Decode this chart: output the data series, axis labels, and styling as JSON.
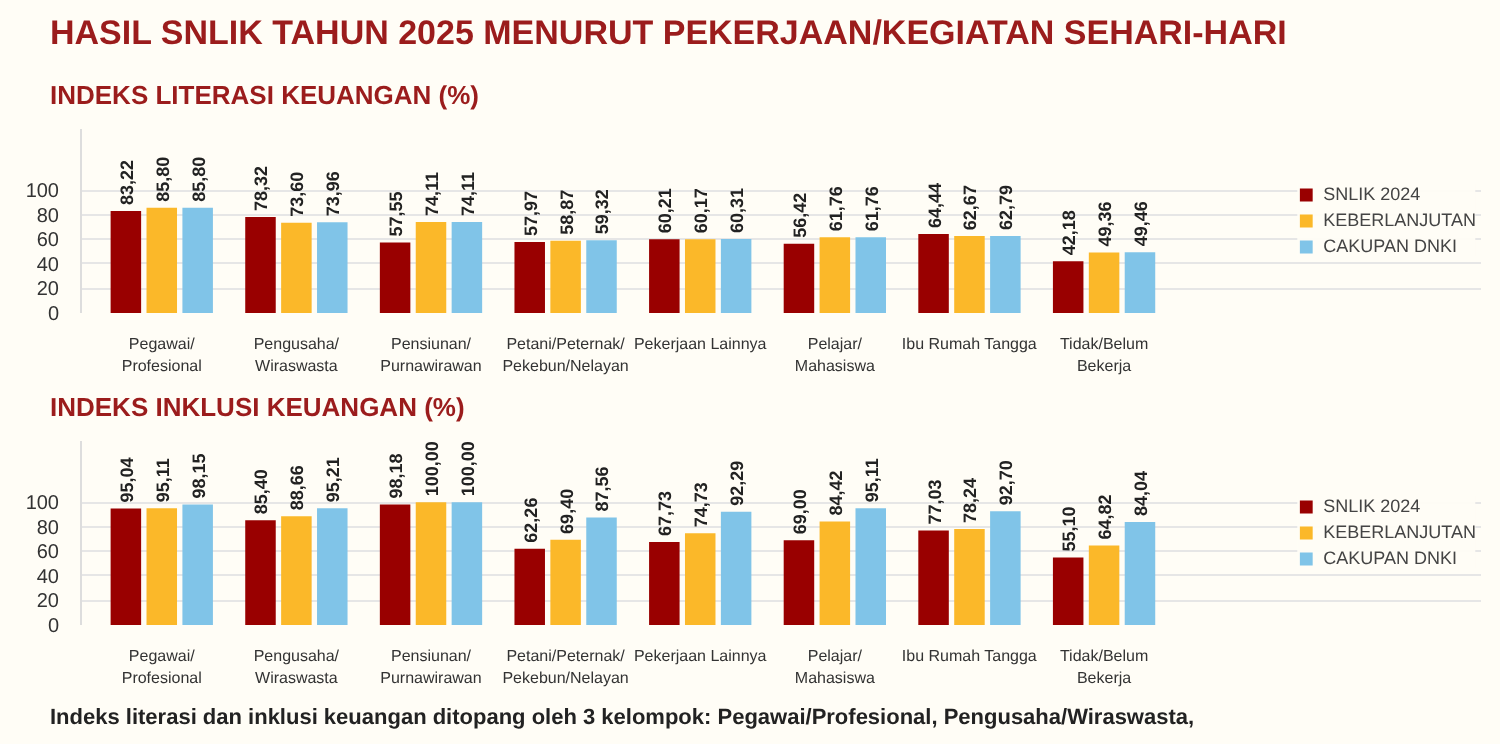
{
  "chart_data": [
    {
      "type": "bar",
      "title": "HASIL SNLIK TAHUN 2025 MENURUT PEKERJAAN/KEGIATAN SEHARI-HARI",
      "subtitle": "INDEKS LITERASI KEUANGAN (%)",
      "categories": [
        "Pegawai/\nProfesional",
        "Pengusaha/\nWiraswasta",
        "Pensiunan/\nPurnawirawan",
        "Petani/Peternak/\nPekebun/Nelayan",
        "Pekerjaan Lainnya",
        "Pelajar/\nMahasiswa",
        "Ibu Rumah Tangga",
        "Tidak/Belum\nBekerja"
      ],
      "series": [
        {
          "name": "SNLIK 2024",
          "color": "#990000",
          "values": [
            83.22,
            78.32,
            57.55,
            57.97,
            60.21,
            56.42,
            64.44,
            42.18
          ],
          "value_labels": [
            "83,22",
            "78,32",
            "57,55",
            "57,97",
            "60,21",
            "56,42",
            "64,44",
            "42,18"
          ]
        },
        {
          "name": "KEBERLANJUTAN",
          "color": "#fbb829",
          "values": [
            85.8,
            73.6,
            74.11,
            58.87,
            60.17,
            61.76,
            62.67,
            49.36
          ],
          "value_labels": [
            "85,80",
            "73,60",
            "74,11",
            "58,87",
            "60,17",
            "61,76",
            "62,67",
            "49,36"
          ]
        },
        {
          "name": "CAKUPAN DNKI",
          "color": "#80c4e8",
          "values": [
            85.8,
            73.96,
            74.11,
            59.32,
            60.31,
            61.76,
            62.79,
            49.46
          ],
          "value_labels": [
            "85,80",
            "73,96",
            "74,11",
            "59,32",
            "60,31",
            "61,76",
            "62,79",
            "49,46"
          ]
        }
      ],
      "ylim": [
        0,
        150
      ],
      "yticks": [
        0,
        20,
        40,
        60,
        80,
        100
      ],
      "grid": "y",
      "legend": "right"
    },
    {
      "type": "bar",
      "title": "INDEKS INKLUSI KEUANGAN (%)",
      "categories": [
        "Pegawai/\nProfesional",
        "Pengusaha/\nWiraswasta",
        "Pensiunan/\nPurnawirawan",
        "Petani/Peternak/\nPekebun/Nelayan",
        "Pekerjaan Lainnya",
        "Pelajar/\nMahasiswa",
        "Ibu Rumah Tangga",
        "Tidak/Belum\nBekerja"
      ],
      "series": [
        {
          "name": "SNLIK 2024",
          "color": "#990000",
          "values": [
            95.04,
            85.4,
            98.18,
            62.26,
            67.73,
            69.0,
            77.03,
            55.1
          ],
          "value_labels": [
            "95,04",
            "85,40",
            "98,18",
            "62,26",
            "67,73",
            "69,00",
            "77,03",
            "55,10"
          ]
        },
        {
          "name": "KEBERLANJUTAN",
          "color": "#fbb829",
          "values": [
            95.11,
            88.66,
            100.0,
            69.4,
            74.73,
            84.42,
            78.24,
            64.82
          ],
          "value_labels": [
            "95,11",
            "88,66",
            "100,00",
            "69,40",
            "74,73",
            "84,42",
            "78,24",
            "64,82"
          ]
        },
        {
          "name": "CAKUPAN DNKI",
          "color": "#80c4e8",
          "values": [
            98.15,
            95.21,
            100.0,
            87.56,
            92.29,
            95.11,
            92.7,
            84.04
          ],
          "value_labels": [
            "98,15",
            "95,21",
            "100,00",
            "87,56",
            "92,29",
            "95,11",
            "92,70",
            "84,04"
          ]
        }
      ],
      "ylim": [
        0,
        150
      ],
      "yticks": [
        0,
        20,
        40,
        60,
        80,
        100
      ],
      "grid": "y",
      "legend": "right",
      "annotations": [
        "Indeks literasi dan inklusi keuangan ditopang oleh 3 kelompok: Pegawai/Profesional, Pengusaha/Wiraswasta,"
      ]
    }
  ]
}
